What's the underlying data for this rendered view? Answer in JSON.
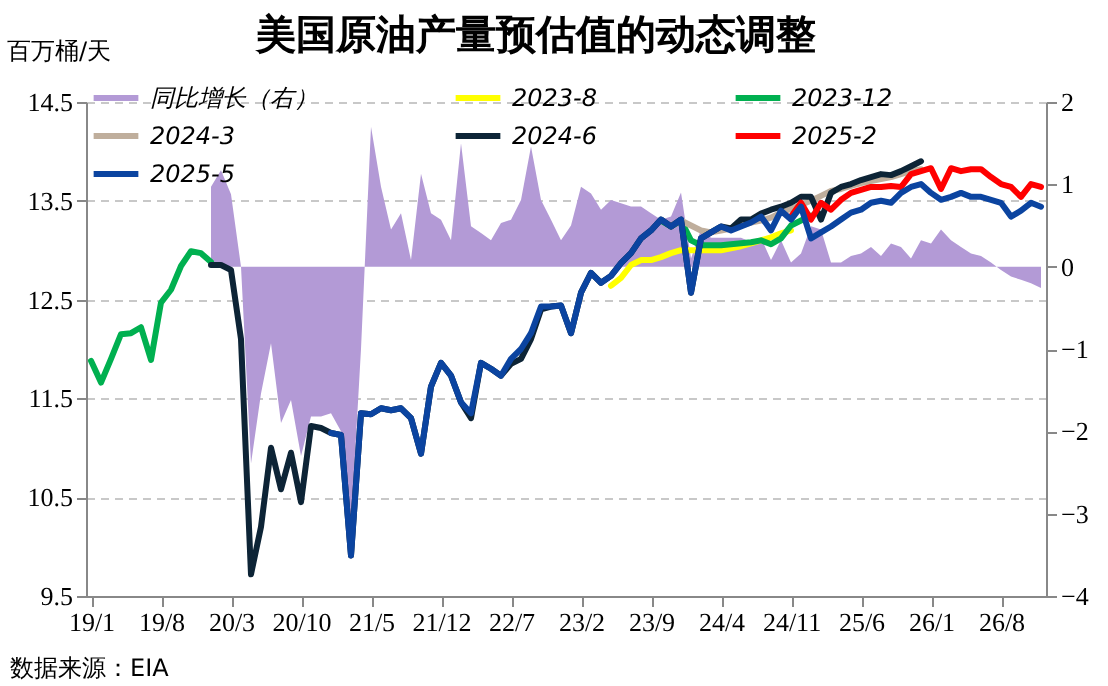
{
  "chart_data": {
    "type": "line",
    "title": "美国原油产量预估值的动态调整",
    "ylabel": "百万桶/天",
    "annotations": [
      "数据来源：EIA"
    ],
    "categories": [
      "19/1",
      null,
      null,
      null,
      null,
      null,
      null,
      "19/8",
      null,
      null,
      null,
      null,
      null,
      null,
      "20/3",
      null,
      null,
      null,
      null,
      null,
      null,
      "20/10",
      null,
      null,
      null,
      null,
      null,
      null,
      "21/5",
      null,
      null,
      null,
      null,
      null,
      null,
      "21/12",
      null,
      null,
      null,
      null,
      null,
      null,
      "22/7",
      null,
      null,
      null,
      null,
      null,
      null,
      "23/2",
      null,
      null,
      null,
      null,
      null,
      null,
      "23/9",
      null,
      null,
      null,
      null,
      null,
      null,
      "24/4",
      null,
      null,
      null,
      null,
      null,
      null,
      "24/11",
      null,
      null,
      null,
      null,
      null,
      null,
      "25/6",
      null,
      null,
      null,
      null,
      null,
      null,
      "26/1",
      null,
      null,
      null,
      null,
      null,
      null,
      "26/8",
      null,
      null,
      null,
      null
    ],
    "series": [
      {
        "name": "同比增长（右）",
        "type": "area",
        "axis": "y2",
        "color": "#b39ad6",
        "values": [
          null,
          null,
          null,
          null,
          null,
          null,
          null,
          null,
          null,
          null,
          null,
          null,
          0.97,
          1.17,
          0.88,
          0,
          -2.39,
          -1.54,
          -0.93,
          -1.9,
          -1.62,
          -2.3,
          -1.82,
          -1.82,
          -1.78,
          -2.0,
          -3.15,
          -1.0,
          1.7,
          0.97,
          0.45,
          0.65,
          0.08,
          1.13,
          0.65,
          0.57,
          0.32,
          1.5,
          0.49,
          0.41,
          0.32,
          0.53,
          0.57,
          0.81,
          1.46,
          0.81,
          0.57,
          0.32,
          0.5,
          0.97,
          0.89,
          0.69,
          0.81,
          0.77,
          0.73,
          0.73,
          0.65,
          0.57,
          0.61,
          0.9,
          0.1,
          0.45,
          0.35,
          0.35,
          0.35,
          0.35,
          0.3,
          0.35,
          0.08,
          0.32,
          0.05,
          0.16,
          0.49,
          0.45,
          0.05,
          0.05,
          0.13,
          0.16,
          0.24,
          0.13,
          0.28,
          0.24,
          0.1,
          0.32,
          0.28,
          0.45,
          0.32,
          0.24,
          0.16,
          0.13,
          0.05,
          -0.04,
          -0.12,
          -0.16,
          -0.2,
          -0.26
        ]
      },
      {
        "name": "2023-8",
        "type": "line",
        "color": "#ffff00",
        "values": [
          null,
          null,
          null,
          null,
          null,
          null,
          null,
          null,
          null,
          null,
          null,
          null,
          null,
          null,
          null,
          null,
          null,
          null,
          null,
          null,
          null,
          null,
          null,
          null,
          null,
          null,
          null,
          null,
          null,
          null,
          null,
          null,
          null,
          null,
          null,
          null,
          null,
          null,
          null,
          null,
          null,
          null,
          null,
          null,
          null,
          null,
          null,
          null,
          null,
          null,
          null,
          null,
          12.64,
          12.72,
          12.85,
          12.9,
          12.9,
          12.93,
          12.97,
          13.0,
          13.0,
          13.0,
          13.0,
          13.0,
          13.02,
          13.04,
          13.07,
          13.1,
          13.13,
          13.17,
          13.2,
          null,
          null,
          null,
          null,
          null,
          null,
          null,
          null,
          null,
          null,
          null,
          null,
          null,
          null,
          null,
          null,
          null,
          null,
          null,
          null,
          null,
          null,
          null,
          null,
          null
        ]
      },
      {
        "name": "2023-12",
        "type": "line",
        "color": "#00b050",
        "values": [
          11.88,
          11.66,
          11.9,
          12.15,
          12.16,
          12.22,
          11.89,
          12.47,
          12.6,
          12.84,
          12.99,
          12.97,
          12.88,
          null,
          null,
          null,
          null,
          null,
          null,
          null,
          null,
          null,
          null,
          null,
          null,
          null,
          null,
          null,
          null,
          null,
          null,
          null,
          null,
          null,
          null,
          null,
          null,
          null,
          null,
          null,
          null,
          null,
          null,
          null,
          null,
          null,
          null,
          null,
          null,
          null,
          null,
          null,
          null,
          null,
          null,
          null,
          null,
          13.3,
          13.24,
          13.3,
          13.1,
          13.05,
          13.05,
          13.05,
          13.06,
          13.07,
          13.08,
          13.1,
          13.06,
          13.12,
          13.25,
          13.3,
          13.35,
          null,
          null,
          null,
          null,
          null,
          null,
          null,
          null,
          null,
          null,
          null,
          null,
          null,
          null,
          null,
          null,
          null,
          null,
          null,
          null,
          null,
          null,
          null
        ]
      },
      {
        "name": "2024-3",
        "type": "line",
        "color": "#bfae9c",
        "values": [
          null,
          null,
          null,
          null,
          null,
          null,
          null,
          null,
          null,
          null,
          null,
          null,
          null,
          null,
          null,
          null,
          null,
          null,
          null,
          null,
          null,
          null,
          null,
          null,
          null,
          null,
          null,
          null,
          null,
          null,
          null,
          null,
          null,
          null,
          null,
          null,
          null,
          null,
          null,
          null,
          null,
          null,
          null,
          null,
          null,
          null,
          null,
          null,
          null,
          null,
          null,
          null,
          null,
          null,
          null,
          null,
          null,
          null,
          13.25,
          13.3,
          13.25,
          13.2,
          13.18,
          13.2,
          13.22,
          13.25,
          13.28,
          13.3,
          13.33,
          13.38,
          13.42,
          13.46,
          13.5,
          13.55,
          13.6,
          13.62,
          13.65,
          13.68,
          13.7,
          13.72,
          13.74,
          13.77,
          13.8,
          13.82,
          null,
          null,
          null,
          null,
          null,
          null,
          null,
          null,
          null,
          null,
          null,
          null
        ]
      },
      {
        "name": "2024-6",
        "type": "line",
        "color": "#0d2436",
        "values": [
          null,
          null,
          null,
          null,
          null,
          null,
          null,
          null,
          null,
          null,
          null,
          null,
          12.85,
          12.85,
          12.8,
          12.1,
          9.72,
          10.2,
          11.0,
          10.58,
          10.95,
          10.45,
          11.22,
          11.2,
          11.15,
          11.13,
          9.91,
          11.35,
          11.34,
          11.4,
          11.38,
          11.4,
          11.3,
          10.94,
          11.62,
          11.86,
          11.73,
          11.46,
          11.3,
          11.86,
          11.8,
          11.73,
          11.85,
          11.9,
          12.1,
          12.4,
          12.43,
          12.44,
          12.16,
          12.57,
          12.77,
          12.67,
          12.74,
          12.87,
          12.97,
          13.12,
          13.2,
          13.31,
          13.24,
          13.31,
          12.57,
          13.12,
          13.18,
          13.24,
          13.22,
          13.31,
          13.31,
          13.37,
          13.41,
          13.44,
          13.48,
          13.54,
          13.54,
          13.31,
          13.58,
          13.64,
          13.67,
          13.71,
          13.74,
          13.77,
          13.76,
          13.8,
          13.85,
          13.9,
          null,
          null,
          null,
          null,
          null,
          null,
          null,
          null,
          null,
          null,
          null,
          null
        ]
      },
      {
        "name": "2025-2",
        "type": "line",
        "color": "#ff0000",
        "values": [
          null,
          null,
          null,
          null,
          null,
          null,
          null,
          null,
          null,
          null,
          null,
          null,
          null,
          null,
          null,
          null,
          null,
          null,
          null,
          null,
          null,
          null,
          null,
          null,
          null,
          null,
          null,
          null,
          null,
          null,
          null,
          null,
          null,
          null,
          null,
          null,
          null,
          null,
          null,
          null,
          null,
          null,
          null,
          null,
          null,
          null,
          null,
          null,
          null,
          null,
          null,
          null,
          null,
          null,
          null,
          null,
          null,
          null,
          null,
          null,
          null,
          null,
          null,
          null,
          null,
          null,
          null,
          null,
          null,
          null,
          13.34,
          13.48,
          13.31,
          13.48,
          13.41,
          13.51,
          13.58,
          13.61,
          13.64,
          13.64,
          13.65,
          13.64,
          13.77,
          13.8,
          13.83,
          13.62,
          13.83,
          13.8,
          13.82,
          13.82,
          13.74,
          13.67,
          13.64,
          13.54,
          13.67,
          13.64
        ]
      },
      {
        "name": "2025-5",
        "type": "line",
        "color": "#0b44a0",
        "values": [
          null,
          null,
          null,
          null,
          null,
          null,
          null,
          null,
          null,
          null,
          null,
          null,
          null,
          null,
          null,
          null,
          null,
          null,
          null,
          null,
          null,
          null,
          null,
          null,
          11.15,
          11.13,
          9.91,
          11.35,
          11.34,
          11.4,
          11.38,
          11.4,
          11.3,
          10.94,
          11.62,
          11.86,
          11.73,
          11.46,
          11.35,
          11.86,
          11.8,
          11.73,
          11.9,
          12.0,
          12.16,
          12.43,
          12.43,
          12.44,
          12.16,
          12.57,
          12.77,
          12.67,
          12.74,
          12.87,
          12.97,
          13.12,
          13.2,
          13.31,
          13.24,
          13.31,
          12.57,
          13.12,
          13.18,
          13.24,
          13.2,
          13.24,
          13.28,
          13.34,
          13.2,
          13.4,
          13.31,
          13.44,
          13.12,
          13.18,
          13.24,
          13.31,
          13.38,
          13.41,
          13.48,
          13.5,
          13.48,
          13.58,
          13.64,
          13.67,
          13.58,
          13.51,
          13.54,
          13.58,
          13.54,
          13.54,
          13.51,
          13.48,
          13.34,
          13.4,
          13.48,
          13.44
        ]
      }
    ],
    "ylim": [
      9.5,
      14.5
    ],
    "yticks": [
      9.5,
      10.5,
      11.5,
      12.5,
      13.5,
      14.5
    ],
    "y2lim": [
      -4,
      2
    ],
    "y2ticks": [
      -4,
      -3,
      -2,
      -1,
      0,
      1,
      2
    ],
    "grid": "y",
    "legend": "top"
  }
}
